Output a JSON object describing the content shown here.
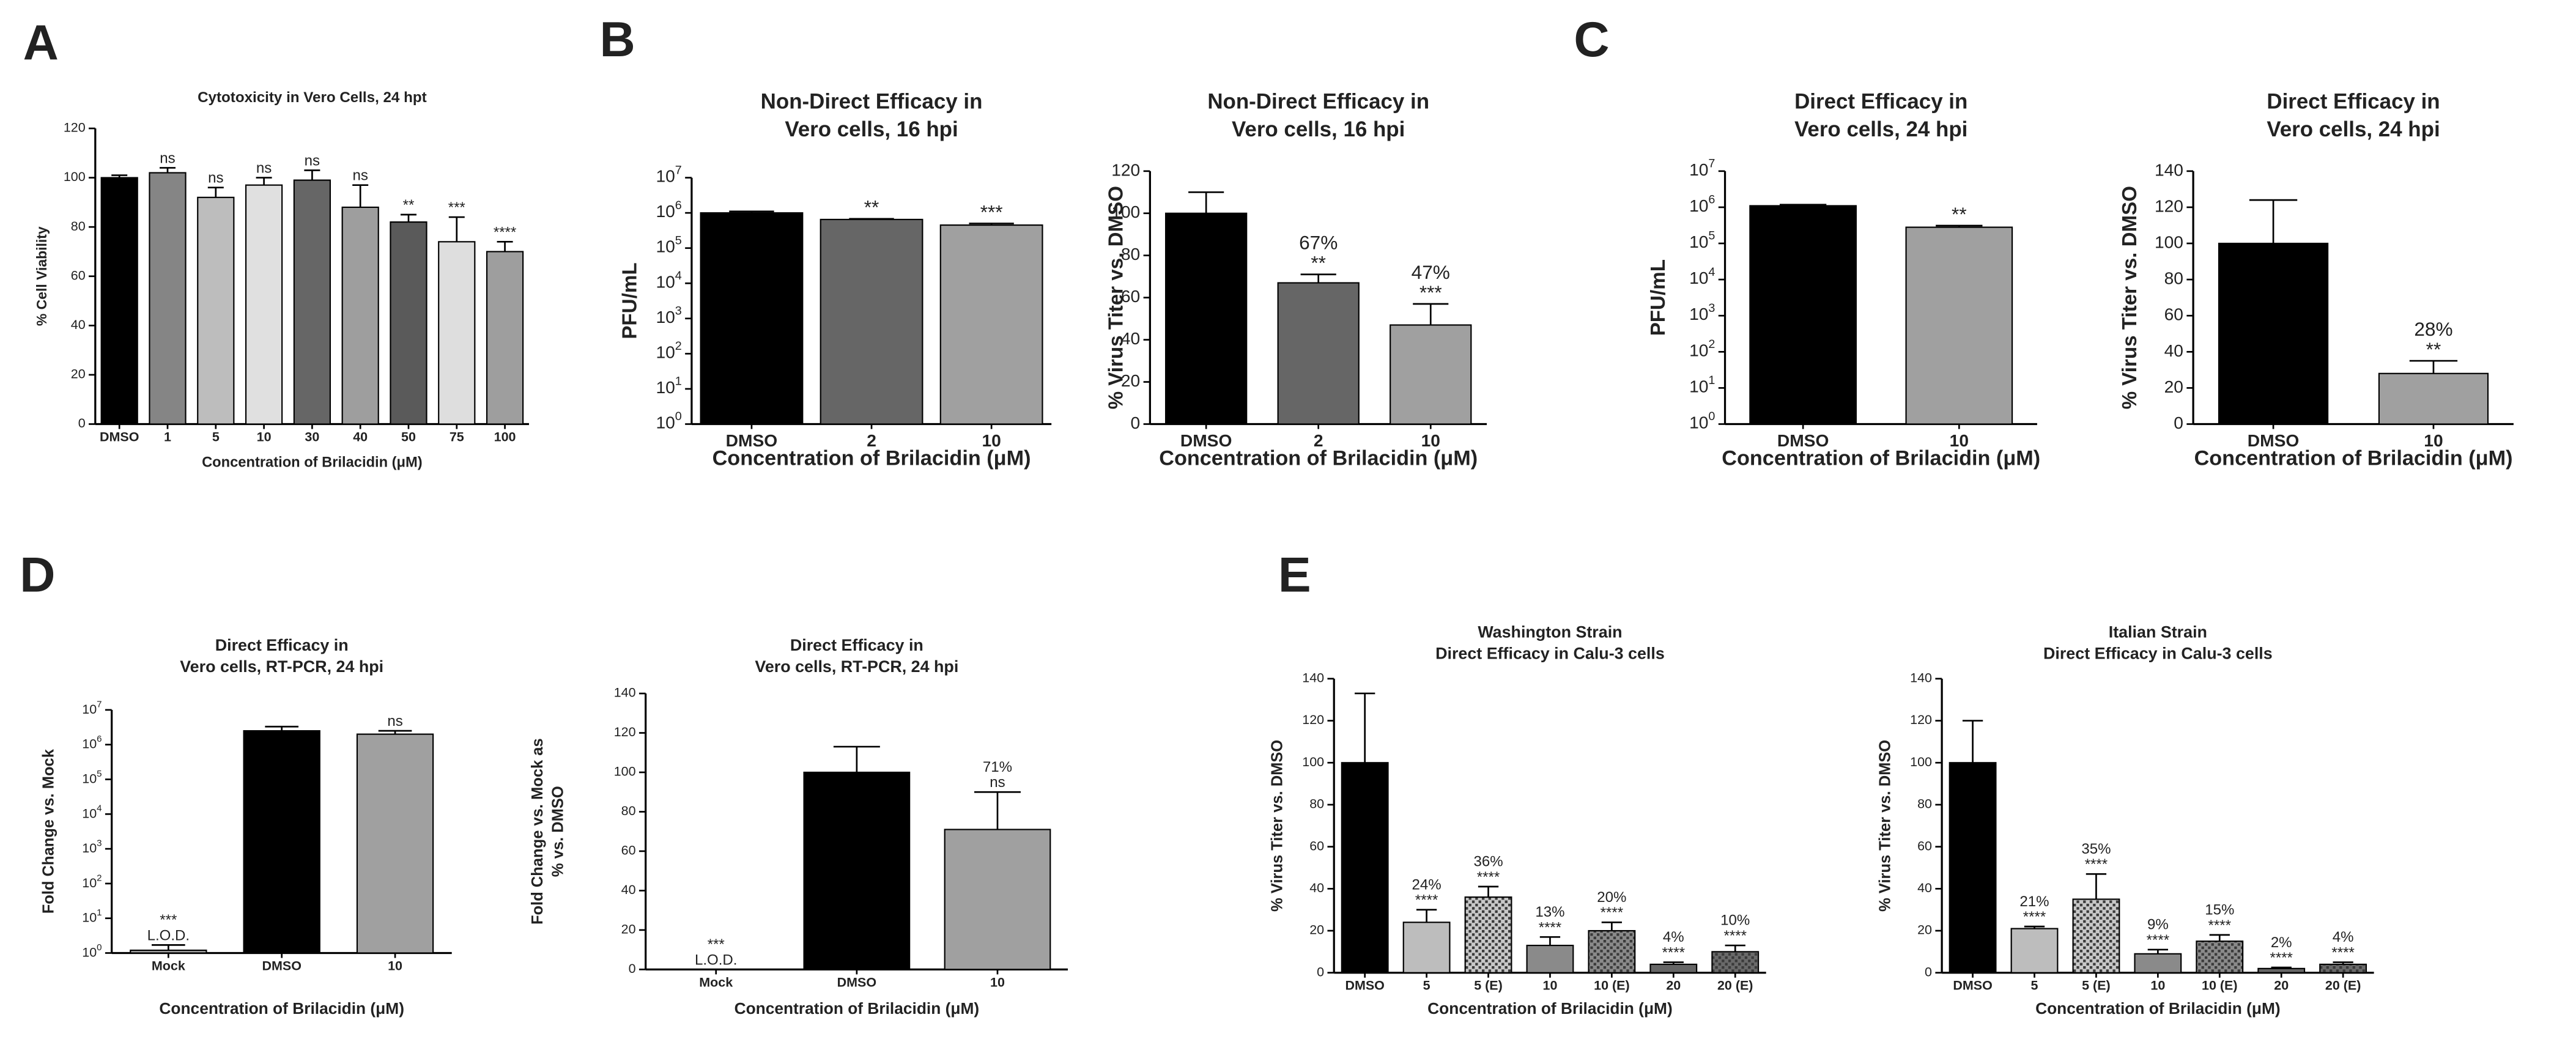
{
  "chart_data": [
    {
      "type": "bar",
      "panel": "A",
      "title": [
        "Cytotoxicity in Vero Cells, 24 hpt"
      ],
      "ylabel": [
        "% Cell Viability"
      ],
      "xlabel": "Concentration of Brilacidin (μM)",
      "categories": [
        "DMSO",
        "1",
        "5",
        "10",
        "30",
        "40",
        "50",
        "75",
        "100"
      ],
      "values": [
        100,
        102,
        92,
        97,
        99,
        88,
        82,
        74,
        70
      ],
      "errors": [
        1,
        2,
        4,
        3,
        4,
        9,
        3,
        10,
        4
      ],
      "annotations": [
        null,
        [
          "ns"
        ],
        [
          "ns"
        ],
        [
          "ns"
        ],
        [
          "ns"
        ],
        [
          "ns"
        ],
        [
          "**"
        ],
        [
          "***"
        ],
        [
          "****"
        ]
      ],
      "colors": [
        "#000000",
        "#858585",
        "#bdbdbd",
        "#e0e0e0",
        "#666666",
        "#9e9e9e",
        "#5a5a5a",
        "#dedede",
        "#9e9e9e"
      ],
      "ylim": [
        0,
        120
      ],
      "yticks": [
        0,
        20,
        40,
        60,
        80,
        100,
        120
      ]
    },
    {
      "type": "bar",
      "panel": "B",
      "title": [
        "Non-Direct Efficacy in",
        "Vero cells, 16 hpi"
      ],
      "ylabel": [
        "PFU/mL"
      ],
      "xlabel": "Concentration of Brilacidin (μM)",
      "categories": [
        "DMSO",
        "2",
        "10"
      ],
      "values": [
        1000000,
        650000,
        450000
      ],
      "errors": [
        100000,
        30000,
        50000
      ],
      "annotations": [
        null,
        [
          "**"
        ],
        [
          "***"
        ]
      ],
      "colors": [
        "#000000",
        "#666666",
        "#a0a0a0"
      ],
      "log_scale": true,
      "ylim": [
        1,
        10000000
      ],
      "yticks": [
        {
          "value": 1,
          "label": "10^0"
        },
        {
          "value": 10,
          "label": "10^1"
        },
        {
          "value": 100,
          "label": "10^2"
        },
        {
          "value": 1000,
          "label": "10^3"
        },
        {
          "value": 10000,
          "label": "10^4"
        },
        {
          "value": 100000,
          "label": "10^5"
        },
        {
          "value": 1000000,
          "label": "10^6"
        },
        {
          "value": 10000000,
          "label": "10^7"
        }
      ]
    },
    {
      "type": "bar",
      "title": [
        "Non-Direct Efficacy in",
        "Vero cells, 16 hpi"
      ],
      "ylabel": [
        "% Virus Titer vs. DMSO"
      ],
      "xlabel": "Concentration of Brilacidin (μM)",
      "categories": [
        "DMSO",
        "2",
        "10"
      ],
      "values": [
        100,
        67,
        47
      ],
      "errors": [
        10,
        4,
        10
      ],
      "value_labels": [
        null,
        "67%",
        "47%"
      ],
      "annotations": [
        null,
        [
          "**"
        ],
        [
          "***"
        ]
      ],
      "colors": [
        "#000000",
        "#666666",
        "#a0a0a0"
      ],
      "ylim": [
        0,
        120
      ],
      "yticks": [
        0,
        20,
        40,
        60,
        80,
        100,
        120
      ]
    },
    {
      "type": "bar",
      "panel": "C",
      "title": [
        "Direct Efficacy in",
        "Vero cells, 24 hpi"
      ],
      "ylabel": [
        "PFU/mL"
      ],
      "xlabel": "Concentration of Brilacidin (μM)",
      "categories": [
        "DMSO",
        "10"
      ],
      "values": [
        1100000,
        280000
      ],
      "errors": [
        80000,
        30000
      ],
      "annotations": [
        null,
        [
          "**"
        ]
      ],
      "colors": [
        "#000000",
        "#a0a0a0"
      ],
      "log_scale": true,
      "ylim": [
        1,
        10000000
      ],
      "yticks": [
        {
          "value": 1,
          "label": "10^0"
        },
        {
          "value": 10,
          "label": "10^1"
        },
        {
          "value": 100,
          "label": "10^2"
        },
        {
          "value": 1000,
          "label": "10^3"
        },
        {
          "value": 10000,
          "label": "10^4"
        },
        {
          "value": 100000,
          "label": "10^5"
        },
        {
          "value": 1000000,
          "label": "10^6"
        },
        {
          "value": 10000000,
          "label": "10^7"
        }
      ]
    },
    {
      "type": "bar",
      "title": [
        "Direct Efficacy in",
        "Vero cells, 24 hpi"
      ],
      "ylabel": [
        "% Virus Titer vs. DMSO"
      ],
      "xlabel": "Concentration of Brilacidin (μM)",
      "categories": [
        "DMSO",
        "10"
      ],
      "values": [
        100,
        28
      ],
      "errors": [
        24,
        7
      ],
      "value_labels": [
        null,
        "28%"
      ],
      "annotations": [
        null,
        [
          "**"
        ]
      ],
      "colors": [
        "#000000",
        "#a0a0a0"
      ],
      "ylim": [
        0,
        140
      ],
      "yticks": [
        0,
        20,
        40,
        60,
        80,
        100,
        120,
        140
      ]
    },
    {
      "type": "bar",
      "panel": "D",
      "title": [
        "Direct Efficacy in",
        "Vero cells, RT-PCR, 24 hpi"
      ],
      "ylabel": [
        "Fold Change vs. Mock"
      ],
      "xlabel": "Concentration of Brilacidin (μM)",
      "categories": [
        "Mock",
        "DMSO",
        "10"
      ],
      "values": [
        1.2,
        2500000,
        2000000
      ],
      "errors": [
        0.5,
        800000,
        500000
      ],
      "annotations": [
        [
          "***",
          "L.O.D."
        ],
        null,
        [
          "ns"
        ]
      ],
      "colors": [
        "#a0a0a0",
        "#000000",
        "#a0a0a0"
      ],
      "log_scale": true,
      "ylim": [
        1,
        10000000
      ],
      "yticks": [
        {
          "value": 1,
          "label": "10^0"
        },
        {
          "value": 10,
          "label": "10^1"
        },
        {
          "value": 100,
          "label": "10^2"
        },
        {
          "value": 1000,
          "label": "10^3"
        },
        {
          "value": 10000,
          "label": "10^4"
        },
        {
          "value": 100000,
          "label": "10^5"
        },
        {
          "value": 1000000,
          "label": "10^6"
        },
        {
          "value": 10000000,
          "label": "10^7"
        }
      ]
    },
    {
      "type": "bar",
      "title": [
        "Direct Efficacy in",
        "Vero cells, RT-PCR, 24 hpi"
      ],
      "ylabel": [
        "Fold Change vs. Mock as",
        "% vs. DMSO"
      ],
      "xlabel": "Concentration of Brilacidin (μM)",
      "categories": [
        "Mock",
        "DMSO",
        "10"
      ],
      "values": [
        0,
        100,
        71
      ],
      "errors": [
        null,
        13,
        19
      ],
      "value_labels": [
        null,
        null,
        "71%"
      ],
      "annotations": [
        [
          "***",
          "L.O.D."
        ],
        null,
        [
          "ns"
        ]
      ],
      "colors": [
        "#a0a0a0",
        "#000000",
        "#a0a0a0"
      ],
      "ylim": [
        0,
        140
      ],
      "yticks": [
        0,
        20,
        40,
        60,
        80,
        100,
        120,
        140
      ]
    },
    {
      "type": "bar",
      "panel": "E",
      "title": [
        "Washington Strain",
        "Direct Efficacy in Calu-3 cells"
      ],
      "ylabel": [
        "% Virus Titer vs. DMSO"
      ],
      "xlabel": "Concentration of Brilacidin (μM)",
      "categories": [
        "DMSO",
        "5",
        "5 (E)",
        "10",
        "10 (E)",
        "20",
        "20 (E)"
      ],
      "values": [
        100,
        24,
        36,
        13,
        20,
        4,
        10
      ],
      "errors": [
        33,
        6,
        5,
        4,
        4,
        1,
        3
      ],
      "value_labels": [
        null,
        "24%",
        "36%",
        "13%",
        "20%",
        "4%",
        "10%"
      ],
      "annotations": [
        null,
        [
          "****"
        ],
        [
          "****"
        ],
        [
          "****"
        ],
        [
          "****"
        ],
        [
          "****"
        ],
        [
          "****"
        ]
      ],
      "colors": [
        "#000000",
        "#bdbdbd",
        "#c8c8c8",
        "#8a8a8a",
        "#8a8a8a",
        "#666666",
        "#6a6a6a"
      ],
      "patterned": [
        false,
        false,
        true,
        false,
        true,
        false,
        true
      ],
      "ylim": [
        0,
        140
      ],
      "yticks": [
        0,
        20,
        40,
        60,
        80,
        100,
        120,
        140
      ]
    },
    {
      "type": "bar",
      "title": [
        "Italian Strain",
        "Direct Efficacy in Calu-3 cells"
      ],
      "ylabel": [
        "% Virus Titer vs. DMSO"
      ],
      "xlabel": "Concentration of Brilacidin (μM)",
      "categories": [
        "DMSO",
        "5",
        "5 (E)",
        "10",
        "10 (E)",
        "20",
        "20 (E)"
      ],
      "values": [
        100,
        21,
        35,
        9,
        15,
        2,
        4
      ],
      "errors": [
        20,
        1,
        12,
        2,
        3,
        0.5,
        1
      ],
      "value_labels": [
        null,
        "21%",
        "35%",
        "9%",
        "15%",
        "2%",
        "4%"
      ],
      "annotations": [
        null,
        [
          "****"
        ],
        [
          "****"
        ],
        [
          "****"
        ],
        [
          "****"
        ],
        [
          "****"
        ],
        [
          "****"
        ]
      ],
      "colors": [
        "#000000",
        "#bdbdbd",
        "#c8c8c8",
        "#8a8a8a",
        "#8a8a8a",
        "#666666",
        "#6a6a6a"
      ],
      "patterned": [
        false,
        false,
        true,
        false,
        true,
        false,
        true
      ],
      "ylim": [
        0,
        140
      ],
      "yticks": [
        0,
        20,
        40,
        60,
        80,
        100,
        120,
        140
      ]
    }
  ]
}
